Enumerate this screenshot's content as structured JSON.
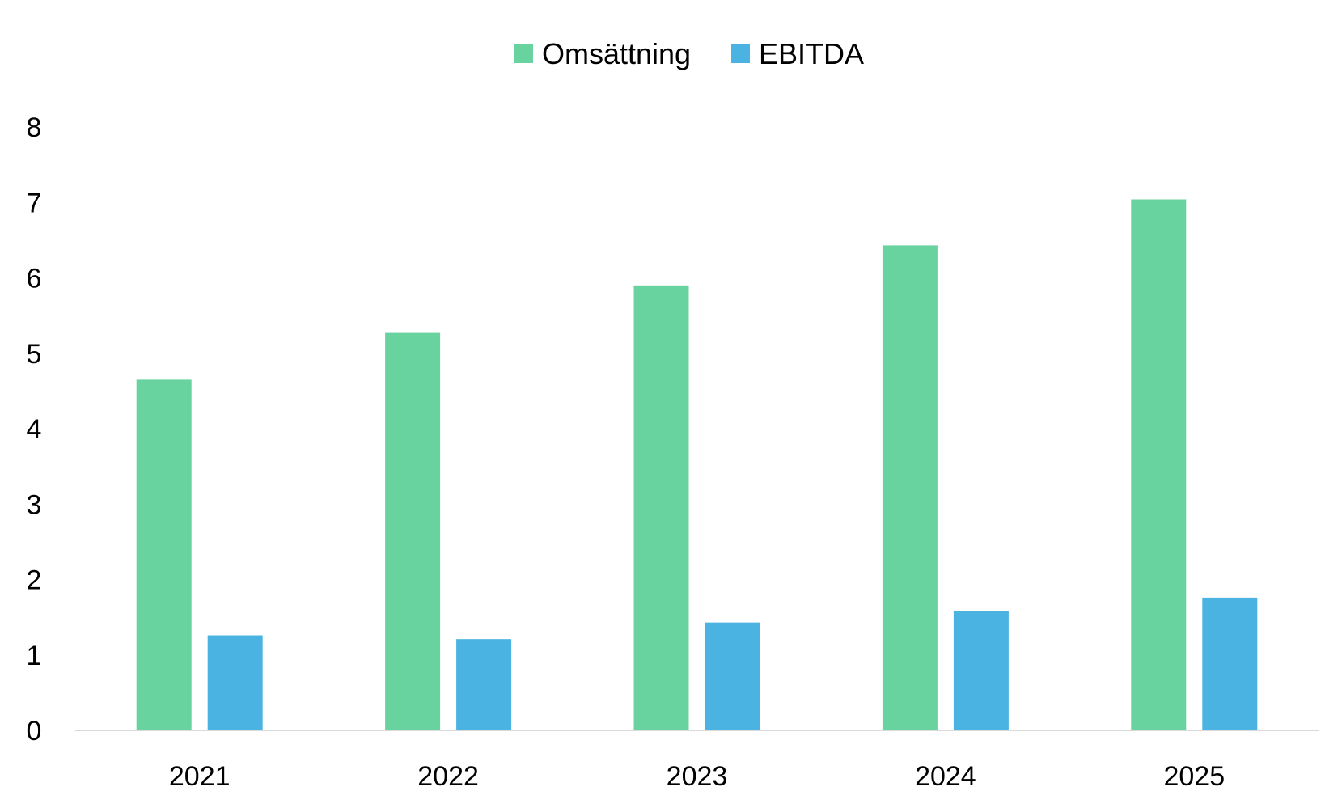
{
  "chart_data": {
    "type": "bar",
    "title": "",
    "xlabel": "",
    "ylabel": "",
    "categories": [
      "2021",
      "2022",
      "2023",
      "2024",
      "2025"
    ],
    "series": [
      {
        "name": "Omsättning",
        "color": "#68d39f",
        "values": [
          4.65,
          5.27,
          5.9,
          6.43,
          7.04
        ]
      },
      {
        "name": "EBITDA",
        "color": "#4ab3e2",
        "values": [
          1.26,
          1.21,
          1.43,
          1.58,
          1.76
        ]
      }
    ],
    "ylim": [
      0,
      8
    ],
    "yticks": [
      "0",
      "1",
      "2",
      "3",
      "4",
      "5",
      "6",
      "7",
      "8"
    ],
    "grid": false,
    "legend_position": "top-center",
    "axis_color": "#d9d9d9"
  }
}
